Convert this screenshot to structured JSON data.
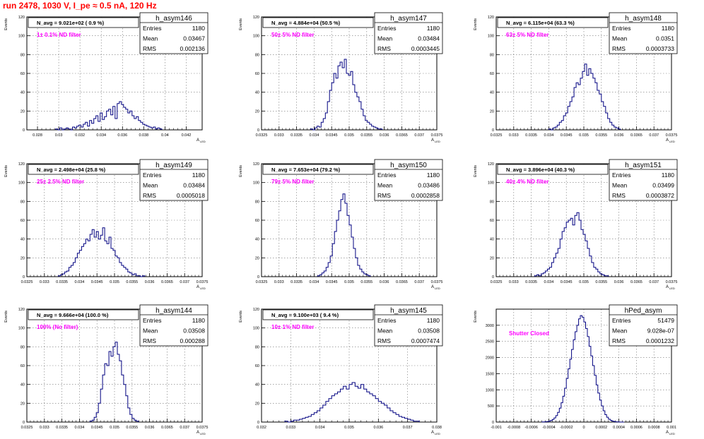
{
  "page_title": "run 2478,  1030 V, I_pe ≈ 0.5 nA, 120 Hz",
  "colors": {
    "title": "#ff0000",
    "annotation": "#ff00ff",
    "histogram": "#000080",
    "frame": "#000000",
    "grid": "#000000"
  },
  "stats_labels": {
    "entries": "Entries",
    "mean": "Mean",
    "rms": "RMS"
  },
  "ylabel": "Events",
  "xlabel_main": "A",
  "xlabel_sub": "LED",
  "chart_data": [
    {
      "type": "histogram",
      "name": "h_asym146",
      "header": "N_avg = 9.021e+02 ( 0.9 %)",
      "annotation": "1± 0.1% ND filter",
      "stats": {
        "entries": "1180",
        "mean": "0.03467",
        "rms": "0.002136"
      },
      "xlim": [
        0.027,
        0.0435
      ],
      "ylim": [
        0,
        120
      ],
      "xticks": [
        0.028,
        0.03,
        0.032,
        0.034,
        0.036,
        0.038,
        0.04,
        0.042
      ],
      "xticklabels": [
        "0.028",
        "0.03",
        "0.032",
        "0.034",
        "0.036",
        "0.038",
        "0.04",
        "0.042"
      ],
      "yticks": [
        0,
        20,
        40,
        60,
        80,
        100,
        120
      ],
      "x_start": 0.0297,
      "bin_width": 0.0002,
      "values": [
        1,
        0,
        2,
        0,
        1,
        2,
        1,
        0,
        3,
        2,
        4,
        5,
        3,
        6,
        8,
        4,
        10,
        7,
        12,
        15,
        9,
        18,
        11,
        14,
        20,
        22,
        16,
        25,
        12,
        28,
        30,
        27,
        24,
        22,
        18,
        20,
        15,
        12,
        14,
        10,
        8,
        6,
        5,
        4,
        3,
        2,
        3,
        1,
        2,
        1
      ]
    },
    {
      "type": "histogram",
      "name": "h_asym147",
      "header": "N_avg = 4.884e+04 (50.5 %)",
      "annotation": "50± 5% ND filter",
      "stats": {
        "entries": "1180",
        "mean": "0.03484",
        "rms": "0.0003445"
      },
      "xlim": [
        0.0325,
        0.0375
      ],
      "ylim": [
        0,
        120
      ],
      "xticks": [
        0.0325,
        0.033,
        0.0335,
        0.034,
        0.0345,
        0.035,
        0.0355,
        0.036,
        0.0365,
        0.037,
        0.0375
      ],
      "xticklabels": [
        "0.0325",
        "0.033",
        "0.0335",
        "0.034",
        "0.0345",
        "0.035",
        "0.0355",
        "0.036",
        "0.0365",
        "0.037",
        "0.0375"
      ],
      "yticks": [
        0,
        20,
        40,
        60,
        80,
        100,
        120
      ],
      "x_start": 0.0339,
      "bin_width": 6e-05,
      "values": [
        1,
        0,
        2,
        4,
        3,
        8,
        12,
        18,
        30,
        42,
        50,
        60,
        55,
        68,
        72,
        66,
        75,
        60,
        58,
        62,
        48,
        40,
        35,
        30,
        22,
        15,
        10,
        8,
        6,
        4,
        3,
        2,
        1,
        1
      ]
    },
    {
      "type": "histogram",
      "name": "h_asym148",
      "header": "N_avg = 6.115e+04 (63.3 %)",
      "annotation": "63± 5% ND filter",
      "stats": {
        "entries": "1180",
        "mean": "0.0351",
        "rms": "0.0003733"
      },
      "xlim": [
        0.0325,
        0.0375
      ],
      "ylim": [
        0,
        120
      ],
      "xticks": [
        0.0325,
        0.033,
        0.0335,
        0.034,
        0.0345,
        0.035,
        0.0355,
        0.036,
        0.0365,
        0.037,
        0.0375
      ],
      "xticklabels": [
        "0.0325",
        "0.033",
        "0.0335",
        "0.034",
        "0.0345",
        "0.035",
        "0.0355",
        "0.036",
        "0.0365",
        "0.037",
        "0.0375"
      ],
      "yticks": [
        0,
        20,
        40,
        60,
        80,
        100,
        120
      ],
      "x_start": 0.034,
      "bin_width": 6e-05,
      "values": [
        1,
        0,
        2,
        3,
        5,
        8,
        10,
        15,
        18,
        25,
        30,
        35,
        45,
        50,
        48,
        55,
        62,
        70,
        58,
        65,
        60,
        55,
        50,
        42,
        38,
        30,
        25,
        18,
        12,
        8,
        5,
        3,
        2,
        1
      ]
    },
    {
      "type": "histogram",
      "name": "h_asym149",
      "header": "N_avg = 2.498e+04 (25.8 %)",
      "annotation": "25± 2.5% ND filter",
      "stats": {
        "entries": "1180",
        "mean": "0.03484",
        "rms": "0.0005018"
      },
      "xlim": [
        0.0325,
        0.0375
      ],
      "ylim": [
        0,
        120
      ],
      "xticks": [
        0.0325,
        0.033,
        0.0335,
        0.034,
        0.0345,
        0.035,
        0.0355,
        0.036,
        0.0365,
        0.037,
        0.0375
      ],
      "xticklabels": [
        "0.0325",
        "0.033",
        "0.0335",
        "0.034",
        "0.0345",
        "0.035",
        "0.0355",
        "0.036",
        "0.0365",
        "0.037",
        "0.0375"
      ],
      "yticks": [
        0,
        20,
        40,
        60,
        80,
        100,
        120
      ],
      "x_start": 0.0334,
      "bin_width": 6e-05,
      "values": [
        1,
        2,
        3,
        5,
        6,
        10,
        12,
        15,
        20,
        25,
        28,
        32,
        35,
        40,
        38,
        45,
        50,
        42,
        48,
        40,
        44,
        52,
        38,
        35,
        42,
        30,
        28,
        22,
        20,
        15,
        12,
        10,
        8,
        5,
        4,
        2,
        3,
        1,
        1,
        0,
        1
      ]
    },
    {
      "type": "histogram",
      "name": "h_asym150",
      "header": "N_avg = 7.653e+04 (79.2 %)",
      "annotation": "79± 5% ND filter",
      "stats": {
        "entries": "1180",
        "mean": "0.03486",
        "rms": "0.0002858"
      },
      "xlim": [
        0.0325,
        0.0375
      ],
      "ylim": [
        0,
        120
      ],
      "xticks": [
        0.0325,
        0.033,
        0.0335,
        0.034,
        0.0345,
        0.035,
        0.0355,
        0.036,
        0.0365,
        0.037,
        0.0375
      ],
      "xticklabels": [
        "0.0325",
        "0.033",
        "0.0335",
        "0.034",
        "0.0345",
        "0.035",
        "0.0355",
        "0.036",
        "0.0365",
        "0.037",
        "0.0375"
      ],
      "yticks": [
        0,
        20,
        40,
        60,
        80,
        100,
        120
      ],
      "x_start": 0.0341,
      "bin_width": 6e-05,
      "values": [
        1,
        2,
        4,
        6,
        10,
        15,
        22,
        35,
        48,
        60,
        70,
        82,
        88,
        78,
        65,
        55,
        42,
        30,
        20,
        12,
        8,
        5,
        3,
        2,
        1
      ]
    },
    {
      "type": "histogram",
      "name": "h_asym151",
      "header": "N_avg = 3.896e+04 (40.3 %)",
      "annotation": "40± 4% ND filter",
      "stats": {
        "entries": "1180",
        "mean": "0.03499",
        "rms": "0.0003872"
      },
      "xlim": [
        0.0325,
        0.0375
      ],
      "ylim": [
        0,
        120
      ],
      "xticks": [
        0.0325,
        0.033,
        0.0335,
        0.034,
        0.0345,
        0.035,
        0.0355,
        0.036,
        0.0365,
        0.037,
        0.0375
      ],
      "xticklabels": [
        "0.0325",
        "0.033",
        "0.0335",
        "0.034",
        "0.0345",
        "0.035",
        "0.0355",
        "0.036",
        "0.0365",
        "0.037",
        "0.0375"
      ],
      "yticks": [
        0,
        20,
        40,
        60,
        80,
        100,
        120
      ],
      "x_start": 0.0336,
      "bin_width": 6e-05,
      "values": [
        1,
        2,
        1,
        3,
        4,
        6,
        8,
        10,
        15,
        20,
        25,
        30,
        40,
        48,
        52,
        58,
        60,
        62,
        55,
        65,
        68,
        60,
        50,
        45,
        38,
        30,
        22,
        15,
        10,
        8,
        5,
        3,
        2,
        1,
        1
      ]
    },
    {
      "type": "histogram",
      "name": "h_asym144",
      "header": "N_avg = 9.666e+04 (100.0 %)",
      "annotation": "100% (No filter)",
      "stats": {
        "entries": "1180",
        "mean": "0.03508",
        "rms": "0.000288"
      },
      "xlim": [
        0.0325,
        0.0375
      ],
      "ylim": [
        0,
        120
      ],
      "xticks": [
        0.0325,
        0.033,
        0.0335,
        0.034,
        0.0345,
        0.035,
        0.0355,
        0.036,
        0.0365,
        0.037,
        0.0375
      ],
      "xticklabels": [
        "0.0325",
        "0.033",
        "0.0335",
        "0.034",
        "0.0345",
        "0.035",
        "0.0355",
        "0.036",
        "0.0365",
        "0.037",
        "0.0375"
      ],
      "yticks": [
        0,
        20,
        40,
        60,
        80,
        100,
        120
      ],
      "x_start": 0.0343,
      "bin_width": 6e-05,
      "values": [
        1,
        2,
        5,
        10,
        20,
        35,
        50,
        62,
        60,
        75,
        70,
        80,
        85,
        72,
        65,
        50,
        40,
        28,
        15,
        8,
        4,
        2,
        1
      ]
    },
    {
      "type": "histogram",
      "name": "h_asym145",
      "header": "N_avg = 9.100e+03 ( 9.4 %)",
      "annotation": "10± 1% ND filter",
      "stats": {
        "entries": "1180",
        "mean": "0.03508",
        "rms": "0.0007474"
      },
      "xlim": [
        0.032,
        0.038
      ],
      "ylim": [
        0,
        120
      ],
      "xticks": [
        0.032,
        0.033,
        0.034,
        0.035,
        0.036,
        0.037,
        0.038
      ],
      "xticklabels": [
        "0.032",
        "0.033",
        "0.034",
        "0.035",
        "0.036",
        "0.037",
        "0.038"
      ],
      "yticks": [
        0,
        20,
        40,
        60,
        80,
        100,
        120
      ],
      "x_start": 0.0328,
      "bin_width": 0.0001,
      "values": [
        1,
        0,
        1,
        2,
        2,
        3,
        4,
        5,
        6,
        8,
        10,
        12,
        15,
        18,
        22,
        25,
        28,
        30,
        32,
        35,
        38,
        35,
        40,
        42,
        38,
        36,
        40,
        35,
        32,
        30,
        28,
        25,
        22,
        20,
        18,
        15,
        12,
        10,
        8,
        6,
        5,
        4,
        3,
        2,
        1,
        1
      ]
    },
    {
      "type": "histogram",
      "name": "hPed_asym",
      "header": "",
      "annotation": "Shutter Closed",
      "stats": {
        "entries": "51479",
        "mean": "9.028e-07",
        "rms": "0.0001232"
      },
      "xlim": [
        -0.001,
        0.001
      ],
      "ylim": [
        0,
        3500
      ],
      "xticks": [
        -0.001,
        -0.0008,
        -0.0006,
        -0.0004,
        -0.0002,
        0,
        0.0002,
        0.0004,
        0.0006,
        0.0008,
        0.001
      ],
      "xticklabels": [
        "-0.001",
        "-0.0008",
        "-0.0006",
        "-0.0004",
        "-0.0002",
        "0",
        "0.0002",
        "0.0004",
        "0.0006",
        "0.0008",
        "0.001"
      ],
      "yticks": [
        0,
        500,
        1000,
        1500,
        2000,
        2500,
        3000
      ],
      "x_start": -0.00048,
      "bin_width": 2e-05,
      "values": [
        2,
        5,
        10,
        18,
        30,
        50,
        80,
        130,
        200,
        300,
        430,
        600,
        800,
        1050,
        1350,
        1650,
        1950,
        2250,
        2550,
        2800,
        3000,
        3200,
        3300,
        3250,
        3100,
        2900,
        2650,
        2350,
        2050,
        1750,
        1450,
        1150,
        900,
        680,
        500,
        350,
        230,
        150,
        90,
        55,
        30,
        15,
        8,
        4,
        2,
        1,
        1
      ]
    }
  ]
}
